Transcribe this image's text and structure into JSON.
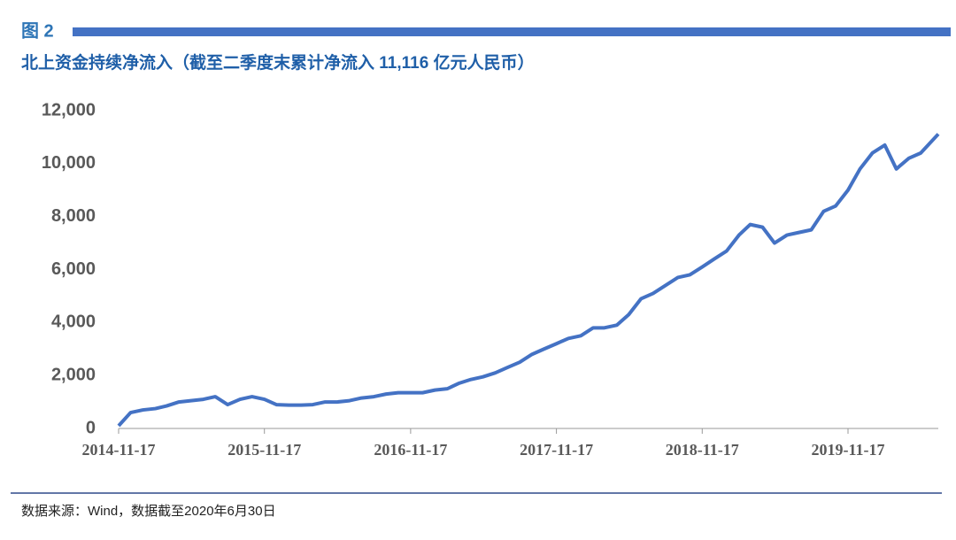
{
  "figure_label": "图 2",
  "source": "数据来源：Wind，数据截至2020年6月30日",
  "chart_data": {
    "type": "line",
    "title": "北上资金持续净流入（截至二季度末累计净流入 11,116 亿元人民币）",
    "x": [
      "2014-11-17",
      "2014-12-17",
      "2015-01-17",
      "2015-02-17",
      "2015-03-17",
      "2015-04-17",
      "2015-05-17",
      "2015-06-17",
      "2015-07-17",
      "2015-08-17",
      "2015-09-17",
      "2015-10-17",
      "2015-11-17",
      "2015-12-17",
      "2016-01-17",
      "2016-02-17",
      "2016-03-17",
      "2016-04-17",
      "2016-05-17",
      "2016-06-17",
      "2016-07-17",
      "2016-08-17",
      "2016-09-17",
      "2016-10-17",
      "2016-11-17",
      "2016-12-17",
      "2017-01-17",
      "2017-02-17",
      "2017-03-17",
      "2017-04-17",
      "2017-05-17",
      "2017-06-17",
      "2017-07-17",
      "2017-08-17",
      "2017-09-17",
      "2017-10-17",
      "2017-11-17",
      "2017-12-17",
      "2018-01-17",
      "2018-02-17",
      "2018-03-17",
      "2018-04-17",
      "2018-05-17",
      "2018-06-17",
      "2018-07-17",
      "2018-08-17",
      "2018-09-17",
      "2018-10-17",
      "2018-11-17",
      "2018-12-17",
      "2019-01-17",
      "2019-02-17",
      "2019-03-17",
      "2019-04-17",
      "2019-05-17",
      "2019-06-17",
      "2019-07-17",
      "2019-08-17",
      "2019-09-17",
      "2019-10-17",
      "2019-11-17",
      "2019-12-17",
      "2020-01-17",
      "2020-02-17",
      "2020-03-17",
      "2020-04-17",
      "2020-05-17",
      "2020-06-30"
    ],
    "series": [
      {
        "color": "#4472c4",
        "values": [
          100,
          600,
          700,
          750,
          850,
          1000,
          1050,
          1100,
          1200,
          900,
          1100,
          1200,
          1100,
          900,
          880,
          880,
          900,
          1000,
          1000,
          1050,
          1150,
          1200,
          1300,
          1350,
          1350,
          1350,
          1450,
          1500,
          1700,
          1850,
          1950,
          2100,
          2300,
          2500,
          2800,
          3000,
          3200,
          3400,
          3500,
          3800,
          3800,
          3900,
          4300,
          4900,
          5100,
          5400,
          5700,
          5800,
          6100,
          6400,
          6700,
          7300,
          7700,
          7600,
          7000,
          7300,
          7400,
          7500,
          8200,
          8400,
          9000,
          9800,
          10400,
          10700,
          9800,
          10200,
          10400,
          11116
        ]
      }
    ],
    "xlim": [
      "2014-11-17",
      "2020-06-30"
    ],
    "xticks": [
      "2014-11-17",
      "2015-11-17",
      "2016-11-17",
      "2017-11-17",
      "2018-11-17",
      "2019-11-17"
    ],
    "ylim": [
      0,
      12000
    ],
    "yticks": [
      0,
      {
        "value": 2000,
        "label": "2,000"
      },
      {
        "value": 4000,
        "label": "4,000"
      },
      {
        "value": 6000,
        "label": "6,000"
      },
      {
        "value": 8000,
        "label": "8,000"
      },
      {
        "value": 10000,
        "label": "10,000"
      },
      {
        "value": 12000,
        "label": "12,000"
      }
    ]
  }
}
